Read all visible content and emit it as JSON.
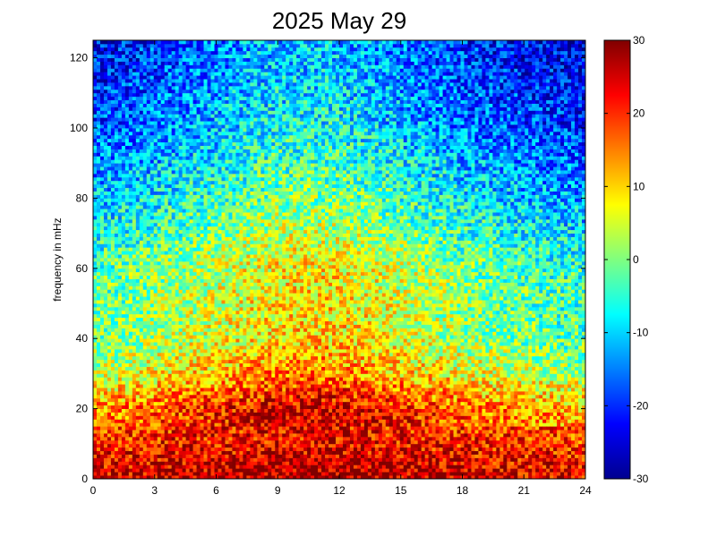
{
  "chart_data": {
    "type": "heatmap",
    "title": "2025 May 29",
    "xlabel": "",
    "ylabel": "frequency in mHz",
    "xlim": [
      0,
      24
    ],
    "ylim": [
      0,
      125
    ],
    "xticks": [
      0,
      3,
      6,
      9,
      12,
      15,
      18,
      21,
      24
    ],
    "yticks": [
      0,
      20,
      40,
      60,
      80,
      100,
      120
    ],
    "colorbar": {
      "colormap": "jet",
      "clim": [
        -30,
        30
      ],
      "ticks": [
        30,
        20,
        10,
        0,
        -10,
        -20,
        -30
      ]
    },
    "grid": false,
    "color_profile_by_frequency_mHz": [
      {
        "frequency": 2,
        "value": 26
      },
      {
        "frequency": 10,
        "value": 22
      },
      {
        "frequency": 20,
        "value": 20
      },
      {
        "frequency": 30,
        "value": 10
      },
      {
        "frequency": 40,
        "value": 5
      },
      {
        "frequency": 60,
        "value": 3
      },
      {
        "frequency": 80,
        "value": -5
      },
      {
        "frequency": 100,
        "value": -12
      },
      {
        "frequency": 120,
        "value": -16
      }
    ],
    "color_profile_by_time": [
      {
        "time": 0,
        "offset": -6
      },
      {
        "time": 3,
        "offset": -3
      },
      {
        "time": 6,
        "offset": 1
      },
      {
        "time": 9,
        "offset": 5
      },
      {
        "time": 12,
        "offset": 5
      },
      {
        "time": 15,
        "offset": 1
      },
      {
        "time": 18,
        "offset": -3
      },
      {
        "time": 21,
        "offset": -6
      },
      {
        "time": 24,
        "offset": -8
      }
    ]
  }
}
